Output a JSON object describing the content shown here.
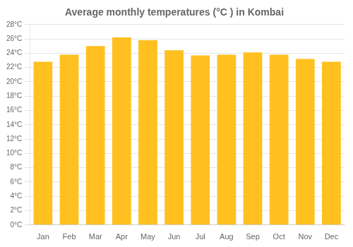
{
  "chart_data": {
    "type": "bar",
    "title": "Average monthly temperatures (°C ) in Kombai",
    "categories": [
      "Jan",
      "Feb",
      "Mar",
      "Apr",
      "May",
      "Jun",
      "Jul",
      "Aug",
      "Sep",
      "Oct",
      "Nov",
      "Dec"
    ],
    "values": [
      22.8,
      23.8,
      25.0,
      26.2,
      25.8,
      24.4,
      23.7,
      23.8,
      24.1,
      23.8,
      23.2,
      22.8
    ],
    "color": "#FFC020",
    "ylim": [
      0,
      28
    ],
    "yticks": [
      {
        "value": 0,
        "label": "0°C"
      },
      {
        "value": 2,
        "label": "2°C"
      },
      {
        "value": 4,
        "label": "4°C"
      },
      {
        "value": 6,
        "label": "6°C"
      },
      {
        "value": 8,
        "label": "8°C"
      },
      {
        "value": 10,
        "label": "10°C"
      },
      {
        "value": 12,
        "label": "12°C"
      },
      {
        "value": 14,
        "label": "14°C"
      },
      {
        "value": 16,
        "label": "16°C"
      },
      {
        "value": 18,
        "label": "18°C"
      },
      {
        "value": 20,
        "label": "20°C"
      },
      {
        "value": 22,
        "label": "22°C"
      },
      {
        "value": 24,
        "label": "24°C"
      },
      {
        "value": 26,
        "label": "26°C"
      },
      {
        "value": 28,
        "label": "28°C"
      }
    ],
    "grid": true
  }
}
